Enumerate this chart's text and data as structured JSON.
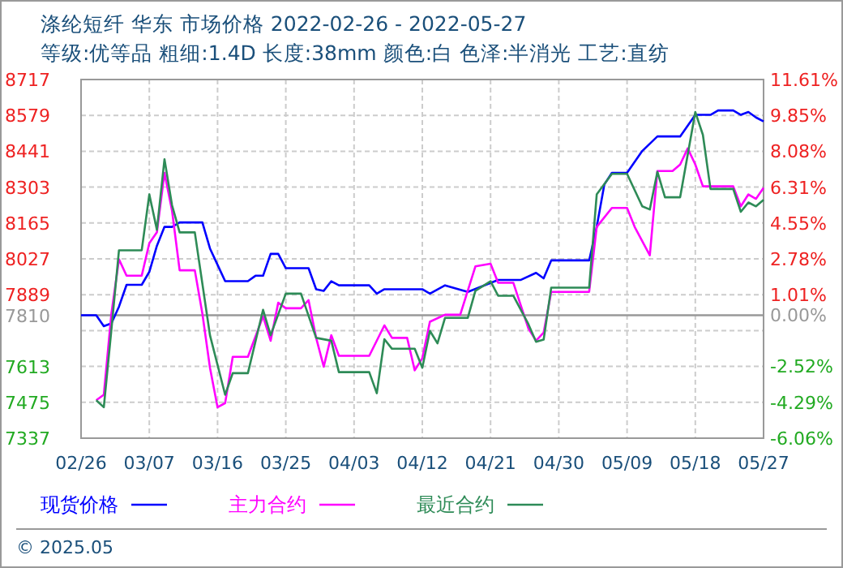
{
  "chart_data": {
    "type": "line",
    "title": "涤纶短纤 华东 市场价格 2022-02-26 - 2022-05-27",
    "subtitle": "等级:优等品 粗细:1.4D 长度:38mm 颜色:白 色泽:半消光 工艺:直纺",
    "xlim": [
      "2022-02-26",
      "2022-05-27"
    ],
    "xticks": [
      {
        "value": "2022-02-26",
        "label": "02/26"
      },
      {
        "value": "2022-03-07",
        "label": "03/07"
      },
      {
        "value": "2022-03-16",
        "label": "03/16"
      },
      {
        "value": "2022-03-25",
        "label": "03/25"
      },
      {
        "value": "2022-04-03",
        "label": "04/03"
      },
      {
        "value": "2022-04-12",
        "label": "04/12"
      },
      {
        "value": "2022-04-21",
        "label": "04/21"
      },
      {
        "value": "2022-04-30",
        "label": "04/30"
      },
      {
        "value": "2022-05-09",
        "label": "05/09"
      },
      {
        "value": "2022-05-18",
        "label": "05/18"
      },
      {
        "value": "2022-05-27",
        "label": "05/27"
      }
    ],
    "ylim": [
      7337,
      8717
    ],
    "yticks": [
      7337,
      7475,
      7613,
      {
        "value": 7751,
        "label": null
      },
      7889,
      8027,
      8165,
      8303,
      8441,
      8579,
      8717
    ],
    "y2lim": [
      -6.06,
      11.61
    ],
    "y2ticks": [
      {
        "value": -6.06,
        "label": "-6.06%"
      },
      {
        "value": -4.29,
        "label": "-4.29%"
      },
      {
        "value": -2.52,
        "label": "-2.52%"
      },
      {
        "value": -0.76,
        "label": null
      },
      {
        "value": 0,
        "label": "0.00%"
      },
      {
        "value": 1.01,
        "label": "1.01%"
      },
      {
        "value": 2.78,
        "label": "2.78%"
      },
      {
        "value": 4.55,
        "label": "4.55%"
      },
      {
        "value": 6.31,
        "label": "6.31%"
      },
      {
        "value": 8.08,
        "label": "8.08%"
      },
      {
        "value": 9.85,
        "label": "9.85%"
      },
      {
        "value": 11.61,
        "label": "11.61%"
      }
    ],
    "ref_lines": [
      {
        "axis": "y",
        "value": 7810,
        "label": "7810",
        "color": "#999999"
      }
    ],
    "grid": true,
    "legend": "bottom",
    "annotations": [
      "© 2025.05"
    ],
    "series": [
      {
        "name": "现货价格",
        "color": "#0000ff",
        "x": [
          "2022-02-26",
          "2022-02-28",
          "2022-03-01",
          "2022-03-02",
          "2022-03-03",
          "2022-03-04",
          "2022-03-06",
          "2022-03-07",
          "2022-03-08",
          "2022-03-09",
          "2022-03-10",
          "2022-03-11",
          "2022-03-14",
          "2022-03-15",
          "2022-03-16",
          "2022-03-17",
          "2022-03-20",
          "2022-03-21",
          "2022-03-22",
          "2022-03-23",
          "2022-03-24",
          "2022-03-25",
          "2022-03-28",
          "2022-03-29",
          "2022-03-30",
          "2022-03-31",
          "2022-04-01",
          "2022-04-05",
          "2022-04-06",
          "2022-04-07",
          "2022-04-12",
          "2022-04-13",
          "2022-04-15",
          "2022-04-18",
          "2022-04-22",
          "2022-04-25",
          "2022-04-27",
          "2022-04-28",
          "2022-04-29",
          "2022-05-04",
          "2022-05-05",
          "2022-05-06",
          "2022-05-07",
          "2022-05-09",
          "2022-05-11",
          "2022-05-13",
          "2022-05-16",
          "2022-05-18",
          "2022-05-20",
          "2022-05-21",
          "2022-05-23",
          "2022-05-24",
          "2022-05-25",
          "2022-05-26",
          "2022-05-27"
        ],
        "values": [
          7810,
          7810,
          7768,
          7779,
          7843,
          7927,
          7927,
          7977,
          8077,
          8150,
          8150,
          8167,
          8167,
          8067,
          8004,
          7941,
          7941,
          7962,
          7962,
          8046,
          8046,
          7991,
          7991,
          7910,
          7904,
          7941,
          7925,
          7925,
          7893,
          7910,
          7910,
          7893,
          7925,
          7900,
          7946,
          7946,
          7973,
          7952,
          8021,
          8021,
          8150,
          8313,
          8358,
          8358,
          8442,
          8498,
          8498,
          8581,
          8581,
          8598,
          8598,
          8581,
          8592,
          8571,
          8556
        ]
      },
      {
        "name": "主力合约",
        "color": "#ff00ff",
        "x": [
          "2022-02-28",
          "2022-03-01",
          "2022-03-02",
          "2022-03-03",
          "2022-03-04",
          "2022-03-06",
          "2022-03-07",
          "2022-03-08",
          "2022-03-09",
          "2022-03-10",
          "2022-03-11",
          "2022-03-13",
          "2022-03-14",
          "2022-03-15",
          "2022-03-16",
          "2022-03-17",
          "2022-03-18",
          "2022-03-20",
          "2022-03-22",
          "2022-03-23",
          "2022-03-24",
          "2022-03-25",
          "2022-03-27",
          "2022-03-28",
          "2022-03-29",
          "2022-03-30",
          "2022-03-31",
          "2022-04-01",
          "2022-04-05",
          "2022-04-07",
          "2022-04-08",
          "2022-04-10",
          "2022-04-11",
          "2022-04-12",
          "2022-04-13",
          "2022-04-15",
          "2022-04-17",
          "2022-04-19",
          "2022-04-21",
          "2022-04-22",
          "2022-04-24",
          "2022-04-26",
          "2022-04-27",
          "2022-04-28",
          "2022-04-29",
          "2022-05-04",
          "2022-05-05",
          "2022-05-07",
          "2022-05-09",
          "2022-05-10",
          "2022-05-12",
          "2022-05-13",
          "2022-05-15",
          "2022-05-16",
          "2022-05-17",
          "2022-05-18",
          "2022-05-19",
          "2022-05-23",
          "2022-05-24",
          "2022-05-25",
          "2022-05-26",
          "2022-05-27"
        ],
        "values": [
          7483,
          7504,
          7816,
          8025,
          7962,
          7962,
          8087,
          8129,
          8358,
          8212,
          7983,
          7983,
          7816,
          7608,
          7456,
          7472,
          7650,
          7650,
          7806,
          7712,
          7858,
          7837,
          7837,
          7868,
          7723,
          7612,
          7733,
          7654,
          7654,
          7771,
          7723,
          7723,
          7598,
          7645,
          7785,
          7812,
          7812,
          7998,
          8008,
          7935,
          7935,
          7758,
          7712,
          7743,
          7900,
          7900,
          8150,
          8223,
          8223,
          8150,
          8041,
          8365,
          8365,
          8390,
          8452,
          8390,
          8306,
          8306,
          8229,
          8275,
          8258,
          8300
        ]
      },
      {
        "name": "最近合约",
        "color": "#2e8b57",
        "x": [
          "2022-02-28",
          "2022-03-01",
          "2022-03-02",
          "2022-03-03",
          "2022-03-06",
          "2022-03-07",
          "2022-03-08",
          "2022-03-09",
          "2022-03-10",
          "2022-03-11",
          "2022-03-13",
          "2022-03-15",
          "2022-03-17",
          "2022-03-18",
          "2022-03-20",
          "2022-03-22",
          "2022-03-23",
          "2022-03-25",
          "2022-03-27",
          "2022-03-29",
          "2022-03-31",
          "2022-04-01",
          "2022-04-05",
          "2022-04-06",
          "2022-04-07",
          "2022-04-08",
          "2022-04-11",
          "2022-04-12",
          "2022-04-13",
          "2022-04-14",
          "2022-04-15",
          "2022-04-18",
          "2022-04-19",
          "2022-04-21",
          "2022-04-22",
          "2022-04-24",
          "2022-04-26",
          "2022-04-27",
          "2022-04-28",
          "2022-04-29",
          "2022-05-04",
          "2022-05-05",
          "2022-05-07",
          "2022-05-09",
          "2022-05-11",
          "2022-05-12",
          "2022-05-13",
          "2022-05-14",
          "2022-05-16",
          "2022-05-18",
          "2022-05-19",
          "2022-05-20",
          "2022-05-23",
          "2022-05-24",
          "2022-05-25",
          "2022-05-26",
          "2022-05-27"
        ],
        "values": [
          7483,
          7456,
          7754,
          8060,
          8060,
          8275,
          8139,
          8410,
          8233,
          8129,
          8129,
          7733,
          7504,
          7587,
          7587,
          7831,
          7733,
          7893,
          7893,
          7723,
          7712,
          7591,
          7591,
          7510,
          7718,
          7681,
          7681,
          7608,
          7750,
          7702,
          7800,
          7800,
          7904,
          7941,
          7885,
          7885,
          7775,
          7708,
          7716,
          7916,
          7916,
          8275,
          8354,
          8354,
          8229,
          8217,
          8362,
          8264,
          8264,
          8592,
          8504,
          8296,
          8296,
          8208,
          8244,
          8229,
          8254
        ]
      }
    ]
  }
}
